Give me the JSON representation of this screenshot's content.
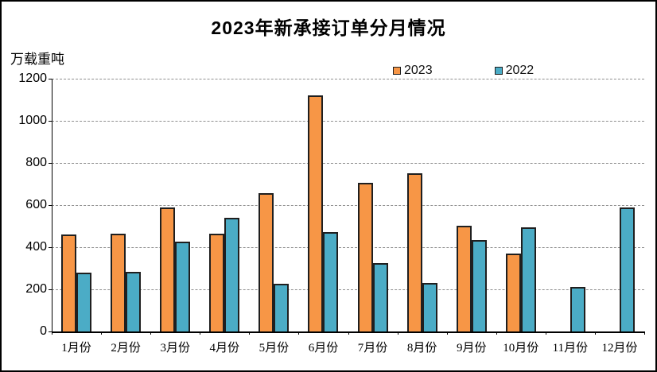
{
  "chart": {
    "title": "2023年新承接订单分月情况",
    "unit_label": "万载重吨",
    "colors": {
      "series_2023": "#F79646",
      "series_2022": "#4BACC6",
      "bar_border": "#1F1F1F",
      "gridline": "#8F8F8F",
      "axis": "#000000",
      "background": "#FFFFFF",
      "frame_border": "#000000"
    }
  },
  "chart_data": {
    "type": "bar",
    "title": "2023年新承接订单分月情况",
    "ylabel": "万载重吨",
    "xlabel": "",
    "categories": [
      "1月份",
      "2月份",
      "3月份",
      "4月份",
      "5月份",
      "6月份",
      "7月份",
      "8月份",
      "9月份",
      "10月份",
      "11月份",
      "12月份"
    ],
    "series": [
      {
        "name": "2023",
        "color": "#F79646",
        "values": [
          460,
          464,
          590,
          464,
          657,
          1122,
          706,
          750,
          500,
          370,
          null,
          null
        ]
      },
      {
        "name": "2022",
        "color": "#4BACC6",
        "values": [
          280,
          284,
          426,
          541,
          226,
          473,
          324,
          230,
          434,
          493,
          213,
          590
        ]
      }
    ],
    "ylim": [
      0,
      1200
    ],
    "ytick_step": 200,
    "ytick_labels": [
      "0",
      "200",
      "400",
      "600",
      "800",
      "1000",
      "1200"
    ],
    "grid": "horizontal-dashed",
    "legend_position": "top-center"
  }
}
